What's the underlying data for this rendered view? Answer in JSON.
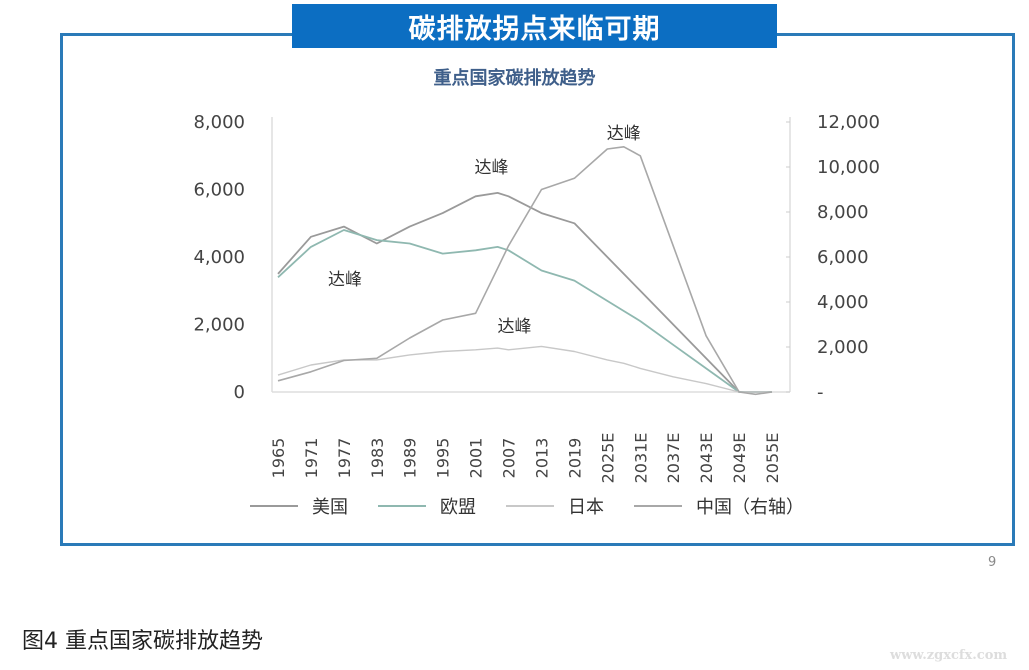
{
  "banner": {
    "title": "碳排放拐点来临可期",
    "color": "#0c6ec2"
  },
  "chart_title": "重点国家碳排放趋势",
  "page_number": "9",
  "caption": "图4 重点国家碳排放趋势",
  "watermark": "www.zgxcfx.com",
  "annotations": {
    "peak": "达峰"
  },
  "legend": [
    {
      "label": "美国",
      "color": "#9a9a9a"
    },
    {
      "label": "欧盟",
      "color": "#8fb8b0"
    },
    {
      "label": "日本",
      "color": "#c8c8c8"
    },
    {
      "label": "中国（右轴）",
      "color": "#a8a8a8"
    }
  ],
  "left_axis_ticks": [
    "8,000",
    "6,000",
    "4,000",
    "2,000",
    "0"
  ],
  "right_axis_ticks": [
    "12,000",
    "10,000",
    "8,000",
    "6,000",
    "4,000",
    "2,000",
    "-"
  ],
  "x_ticks": [
    "1965",
    "1971",
    "1977",
    "1983",
    "1989",
    "1995",
    "2001",
    "2007",
    "2013",
    "2019",
    "2025E",
    "2031E",
    "2037E",
    "2043E",
    "2049E",
    "2055E"
  ],
  "chart_data": {
    "type": "line",
    "title": "重点国家碳排放趋势",
    "xlabel": "",
    "ylabel": "",
    "ylim": [
      0,
      8000
    ],
    "y2lim": [
      0,
      12000
    ],
    "grid": false,
    "legend_position": "bottom",
    "x": [
      1965,
      1971,
      1977,
      1983,
      1989,
      1995,
      2001,
      2005,
      2007,
      2013,
      2019,
      2025,
      2028,
      2031,
      2037,
      2043,
      2049,
      2052,
      2055
    ],
    "series": [
      {
        "name": "美国",
        "axis": "left",
        "values": [
          3500,
          4600,
          4900,
          4400,
          4900,
          5300,
          5800,
          5900,
          5800,
          5300,
          5000,
          4000,
          3500,
          3000,
          2000,
          1000,
          0,
          0,
          0
        ]
      },
      {
        "name": "欧盟",
        "axis": "left",
        "values": [
          3400,
          4300,
          4800,
          4500,
          4400,
          4100,
          4200,
          4300,
          4200,
          3600,
          3300,
          2700,
          2400,
          2100,
          1400,
          700,
          0,
          0,
          0
        ]
      },
      {
        "name": "日本",
        "axis": "left",
        "values": [
          500,
          800,
          950,
          950,
          1100,
          1200,
          1250,
          1300,
          1250,
          1350,
          1200,
          950,
          850,
          700,
          450,
          250,
          0,
          0,
          0
        ]
      },
      {
        "name": "中国（右轴）",
        "axis": "right",
        "values": [
          500,
          900,
          1400,
          1500,
          2400,
          3200,
          3500,
          5500,
          6500,
          9000,
          9500,
          10800,
          10900,
          10500,
          6500,
          2500,
          0,
          -100,
          0
        ]
      }
    ],
    "annotations": [
      {
        "text": "达峰",
        "series": "美国",
        "x": 2005,
        "y": 5900
      },
      {
        "text": "达峰",
        "series": "欧盟",
        "x": 1979,
        "y": 4800
      },
      {
        "text": "达峰",
        "series": "日本",
        "x": 2007,
        "y": 1300
      },
      {
        "text": "达峰",
        "series": "中国（右轴）",
        "x": 2028,
        "y": 10900
      }
    ]
  }
}
